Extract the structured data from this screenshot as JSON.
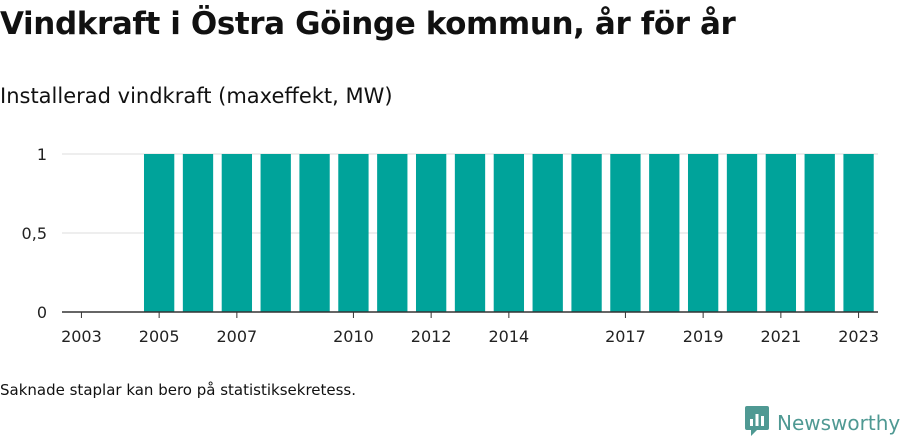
{
  "title": "Vindkraft i Östra Göinge kommun, år för år",
  "subtitle": "Installerad vindkraft (maxeffekt, MW)",
  "footnote": "Saknade staplar kan bero på statistiksekretess.",
  "brand": {
    "name": "Newsworthy",
    "icon": "newsworthy-logo-icon",
    "color": "#4f9993"
  },
  "colors": {
    "bar": "#00a39a",
    "grid": "#dddddd",
    "axis": "#333333"
  },
  "chart_data": {
    "type": "bar",
    "title": "Vindkraft i Östra Göinge kommun, år för år",
    "ylabel": "Installerad vindkraft (maxeffekt, MW)",
    "xlabel": "",
    "categories": [
      "2003",
      "2004",
      "2005",
      "2006",
      "2007",
      "2008",
      "2009",
      "2010",
      "2011",
      "2012",
      "2013",
      "2014",
      "2015",
      "2016",
      "2017",
      "2018",
      "2019",
      "2020",
      "2021",
      "2022",
      "2023"
    ],
    "values": [
      0,
      0,
      1,
      1,
      1,
      1,
      1,
      1,
      1,
      1,
      1,
      1,
      1,
      1,
      1,
      1,
      1,
      1,
      1,
      1,
      1
    ],
    "x_tick_labels": [
      "2003",
      "2005",
      "2007",
      "2010",
      "2012",
      "2014",
      "2017",
      "2019",
      "2021",
      "2023"
    ],
    "y_ticks": [
      0,
      0.5,
      1
    ],
    "y_tick_labels": [
      "0",
      "0,5",
      "1"
    ],
    "ylim": [
      0,
      1
    ],
    "grid": true,
    "legend": false
  }
}
